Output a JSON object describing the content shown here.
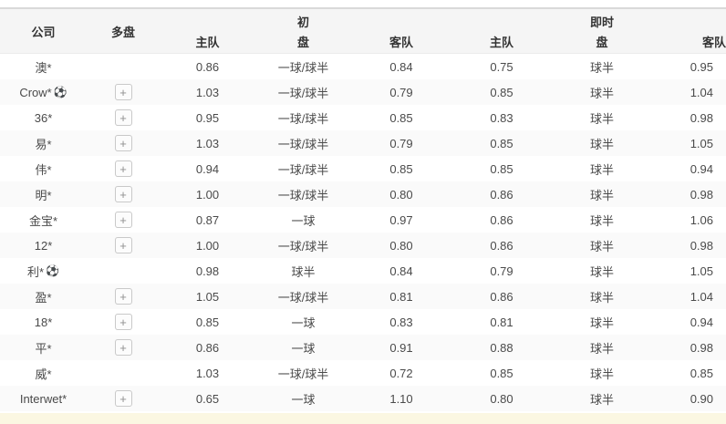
{
  "icons": {
    "soccer": "⚽",
    "plus": "+"
  },
  "colors": {
    "header_bg": "#f5f5f5",
    "stripe_bg": "#fafafa",
    "top_border": "#d9d9d9",
    "notice_bg": "#fbf7e2"
  },
  "table": {
    "columns": {
      "company": "公司",
      "multi": "多盘",
      "group_initial": "初",
      "group_live": "即时",
      "initial_home": "主队",
      "initial_pan": "盘",
      "initial_away": "客队",
      "live_home": "主队",
      "live_pan": "盘",
      "live_away": "客队"
    },
    "rows": [
      {
        "company": "澳*",
        "ball": "",
        "plus": "",
        "i_home": "0.86",
        "i_pan": "一球/球半",
        "i_away": "0.84",
        "l_home": "0.75",
        "l_pan": "球半",
        "l_away": "0.95"
      },
      {
        "company": "Crow*",
        "ball": "⚽",
        "plus": "+",
        "i_home": "1.03",
        "i_pan": "一球/球半",
        "i_away": "0.79",
        "l_home": "0.85",
        "l_pan": "球半",
        "l_away": "1.04"
      },
      {
        "company": "36*",
        "ball": "",
        "plus": "+",
        "i_home": "0.95",
        "i_pan": "一球/球半",
        "i_away": "0.85",
        "l_home": "0.83",
        "l_pan": "球半",
        "l_away": "0.98"
      },
      {
        "company": "易*",
        "ball": "",
        "plus": "+",
        "i_home": "1.03",
        "i_pan": "一球/球半",
        "i_away": "0.79",
        "l_home": "0.85",
        "l_pan": "球半",
        "l_away": "1.05"
      },
      {
        "company": "伟*",
        "ball": "",
        "plus": "+",
        "i_home": "0.94",
        "i_pan": "一球/球半",
        "i_away": "0.85",
        "l_home": "0.85",
        "l_pan": "球半",
        "l_away": "0.94"
      },
      {
        "company": "明*",
        "ball": "",
        "plus": "+",
        "i_home": "1.00",
        "i_pan": "一球/球半",
        "i_away": "0.80",
        "l_home": "0.86",
        "l_pan": "球半",
        "l_away": "0.98"
      },
      {
        "company": "金宝*",
        "ball": "",
        "plus": "+",
        "i_home": "0.87",
        "i_pan": "一球",
        "i_away": "0.97",
        "l_home": "0.86",
        "l_pan": "球半",
        "l_away": "1.06"
      },
      {
        "company": "12*",
        "ball": "",
        "plus": "+",
        "i_home": "1.00",
        "i_pan": "一球/球半",
        "i_away": "0.80",
        "l_home": "0.86",
        "l_pan": "球半",
        "l_away": "0.98"
      },
      {
        "company": "利*",
        "ball": "⚽",
        "plus": "",
        "i_home": "0.98",
        "i_pan": "球半",
        "i_away": "0.84",
        "l_home": "0.79",
        "l_pan": "球半",
        "l_away": "1.05"
      },
      {
        "company": "盈*",
        "ball": "",
        "plus": "+",
        "i_home": "1.05",
        "i_pan": "一球/球半",
        "i_away": "0.81",
        "l_home": "0.86",
        "l_pan": "球半",
        "l_away": "1.04"
      },
      {
        "company": "18*",
        "ball": "",
        "plus": "+",
        "i_home": "0.85",
        "i_pan": "一球",
        "i_away": "0.83",
        "l_home": "0.81",
        "l_pan": "球半",
        "l_away": "0.94"
      },
      {
        "company": "平*",
        "ball": "",
        "plus": "+",
        "i_home": "0.86",
        "i_pan": "一球",
        "i_away": "0.91",
        "l_home": "0.88",
        "l_pan": "球半",
        "l_away": "0.98"
      },
      {
        "company": "威*",
        "ball": "",
        "plus": "",
        "i_home": "1.03",
        "i_pan": "一球/球半",
        "i_away": "0.72",
        "l_home": "0.85",
        "l_pan": "球半",
        "l_away": "0.85"
      },
      {
        "company": "Interwet*",
        "ball": "",
        "plus": "+",
        "i_home": "0.65",
        "i_pan": "一球",
        "i_away": "1.10",
        "l_home": "0.80",
        "l_pan": "球半",
        "l_away": "0.90"
      }
    ]
  }
}
